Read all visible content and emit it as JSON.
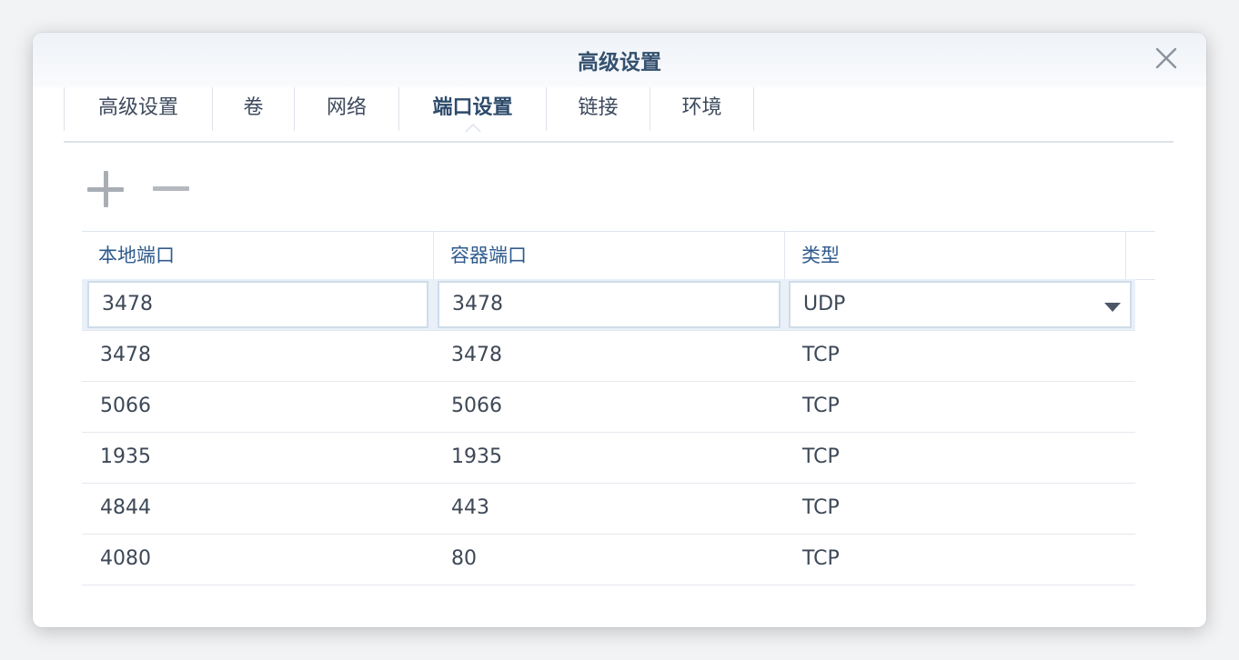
{
  "dialog": {
    "title": "高级设置"
  },
  "tabs": [
    {
      "label": "高级设置"
    },
    {
      "label": "卷"
    },
    {
      "label": "网络"
    },
    {
      "label": "端口设置",
      "active": true
    },
    {
      "label": "链接"
    },
    {
      "label": "环境"
    }
  ],
  "toolbar": {
    "add_icon": "plus-icon",
    "remove_icon": "minus-icon"
  },
  "table": {
    "headers": [
      "本地端口",
      "容器端口",
      "类型"
    ],
    "edit_row": {
      "local_port": "3478",
      "container_port": "3478",
      "type": "UDP"
    },
    "rows": [
      {
        "local_port": "3478",
        "container_port": "3478",
        "type": "TCP"
      },
      {
        "local_port": "5066",
        "container_port": "5066",
        "type": "TCP"
      },
      {
        "local_port": "1935",
        "container_port": "1935",
        "type": "TCP"
      },
      {
        "local_port": "4844",
        "container_port": "443",
        "type": "TCP"
      },
      {
        "local_port": "4080",
        "container_port": "80",
        "type": "TCP"
      }
    ]
  },
  "colors": {
    "title": "#34516f",
    "header_text": "#2f5b8d",
    "edit_row_bg": "#e9f0f8"
  }
}
